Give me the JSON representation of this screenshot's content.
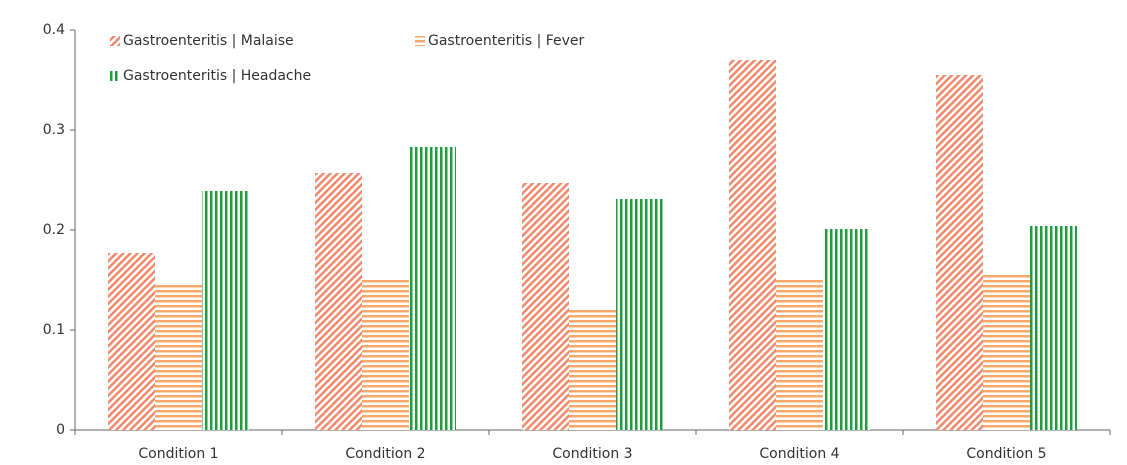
{
  "chart_data": {
    "type": "bar",
    "categories": [
      "Condition 1",
      "Condition 2",
      "Condition 3",
      "Condition 4",
      "Condition 5"
    ],
    "series": [
      {
        "name": "Gastroenteritis | Malaise",
        "color": "#f08a6e",
        "hatch": "diagonal",
        "values": [
          0.177,
          0.257,
          0.247,
          0.37,
          0.355
        ]
      },
      {
        "name": "Gastroenteritis | Fever",
        "color": "#f7a86a",
        "hatch": "horizontal",
        "values": [
          0.145,
          0.151,
          0.12,
          0.151,
          0.157
        ]
      },
      {
        "name": "Gastroenteritis | Headache",
        "color": "#1f9e3e",
        "hatch": "vertical",
        "values": [
          0.239,
          0.283,
          0.231,
          0.201,
          0.204
        ]
      }
    ],
    "ylim": [
      0,
      0.4
    ],
    "yticks": [
      0,
      0.1,
      0.2,
      0.3,
      0.4
    ],
    "grid": false,
    "legend": "top-left"
  }
}
